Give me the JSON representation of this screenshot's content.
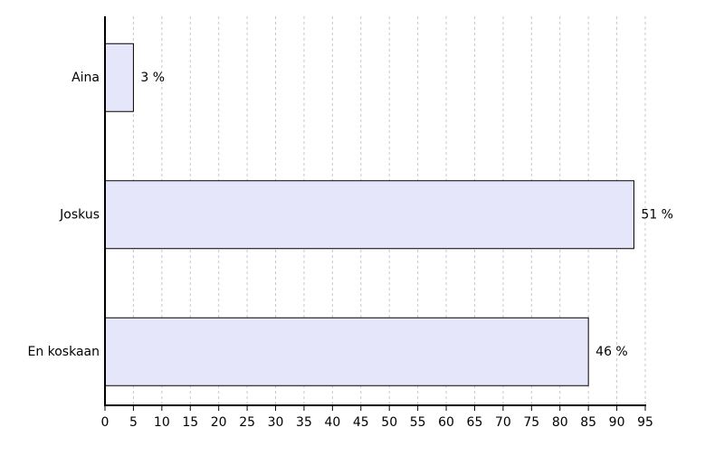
{
  "chart_data": {
    "type": "bar",
    "orientation": "horizontal",
    "categories": [
      "Aina",
      "Joskus",
      "En koskaan"
    ],
    "values": [
      5,
      93,
      85
    ],
    "value_labels": [
      "3 %",
      "51 %",
      "46 %"
    ],
    "color": "#e6e6fa",
    "xlim": [
      0,
      95
    ],
    "xticks": [
      0,
      5,
      10,
      15,
      20,
      25,
      30,
      35,
      40,
      45,
      50,
      55,
      60,
      65,
      70,
      75,
      80,
      85,
      90,
      95
    ],
    "grid": true
  }
}
